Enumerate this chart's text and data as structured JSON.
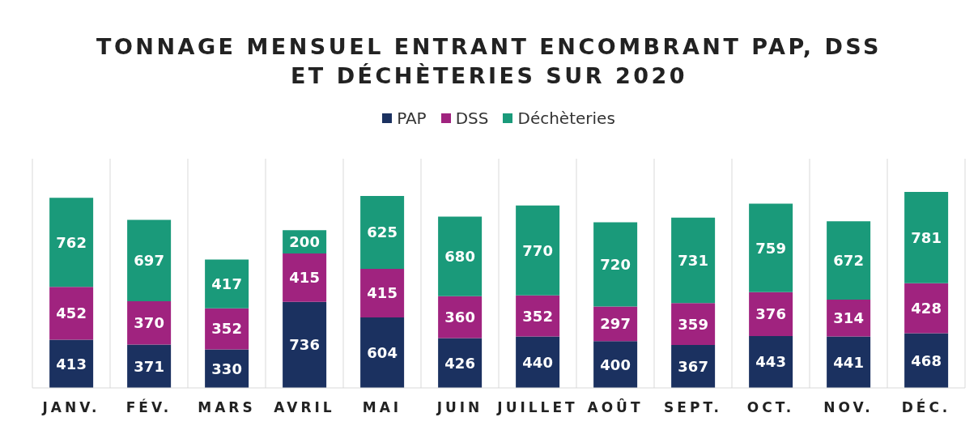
{
  "chart_data": {
    "type": "bar",
    "title": "TONNAGE MENSUEL ENTRANT ENCOMBRANT PAP, DSS\nET DÉCHÈTERIES SUR 2020",
    "categories": [
      "JANV.",
      "FÉV.",
      "MARS",
      "AVRIL",
      "MAI",
      "JUIN",
      "JUILLET",
      "AOÛT",
      "SEPT.",
      "OCT.",
      "NOV.",
      "DÉC."
    ],
    "stacked": true,
    "data_labels": true,
    "grid": "x",
    "legend": "top",
    "series": [
      {
        "name": "PAP",
        "color": "#1b3160",
        "values": [
          413,
          371,
          330,
          736,
          604,
          426,
          440,
          400,
          367,
          443,
          441,
          468
        ]
      },
      {
        "name": "DSS",
        "color": "#a0237f",
        "values": [
          452,
          370,
          352,
          415,
          415,
          360,
          352,
          297,
          359,
          376,
          314,
          428
        ]
      },
      {
        "name": "Déchèteries",
        "color": "#1a9a7a",
        "values": [
          762,
          697,
          417,
          200,
          625,
          680,
          770,
          720,
          731,
          759,
          672,
          781
        ]
      }
    ]
  }
}
